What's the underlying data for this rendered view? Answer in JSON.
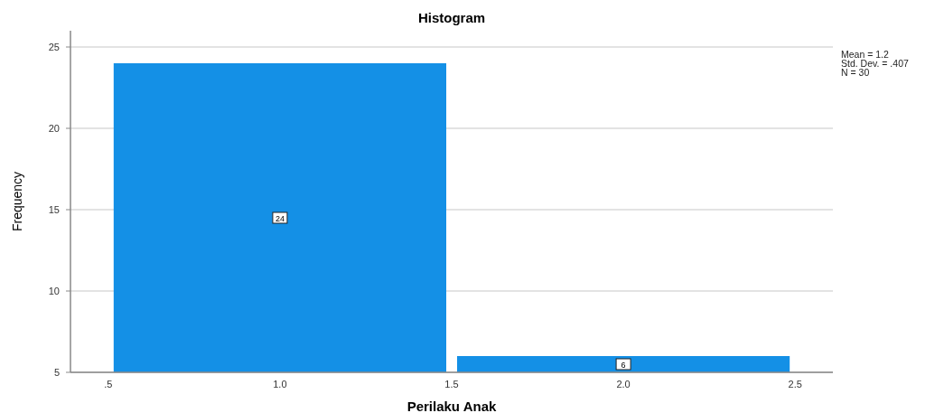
{
  "chart_data": {
    "type": "histogram",
    "title": "Histogram",
    "xlabel": "Perilaku Anak",
    "ylabel": "Frequency",
    "bins": [
      0.5,
      1.5,
      2.5
    ],
    "values": [
      24,
      6
    ],
    "color": "#1490e6",
    "data_labels": true,
    "xlim": [
      0.39,
      2.61
    ],
    "xticks": [
      {
        "value": 0.5,
        "label": ".5"
      },
      {
        "value": 1,
        "label": "1.0"
      },
      {
        "value": 1.5,
        "label": "1.5"
      },
      {
        "value": 2,
        "label": "2.0"
      },
      {
        "value": 2.5,
        "label": "2.5"
      }
    ],
    "ylim": [
      5,
      26
    ],
    "yticks": [
      5,
      10,
      15,
      20,
      25
    ],
    "grid": "y",
    "annotations": [
      "Mean = 1.2",
      "Std. Dev. = .407",
      "N = 30"
    ]
  }
}
